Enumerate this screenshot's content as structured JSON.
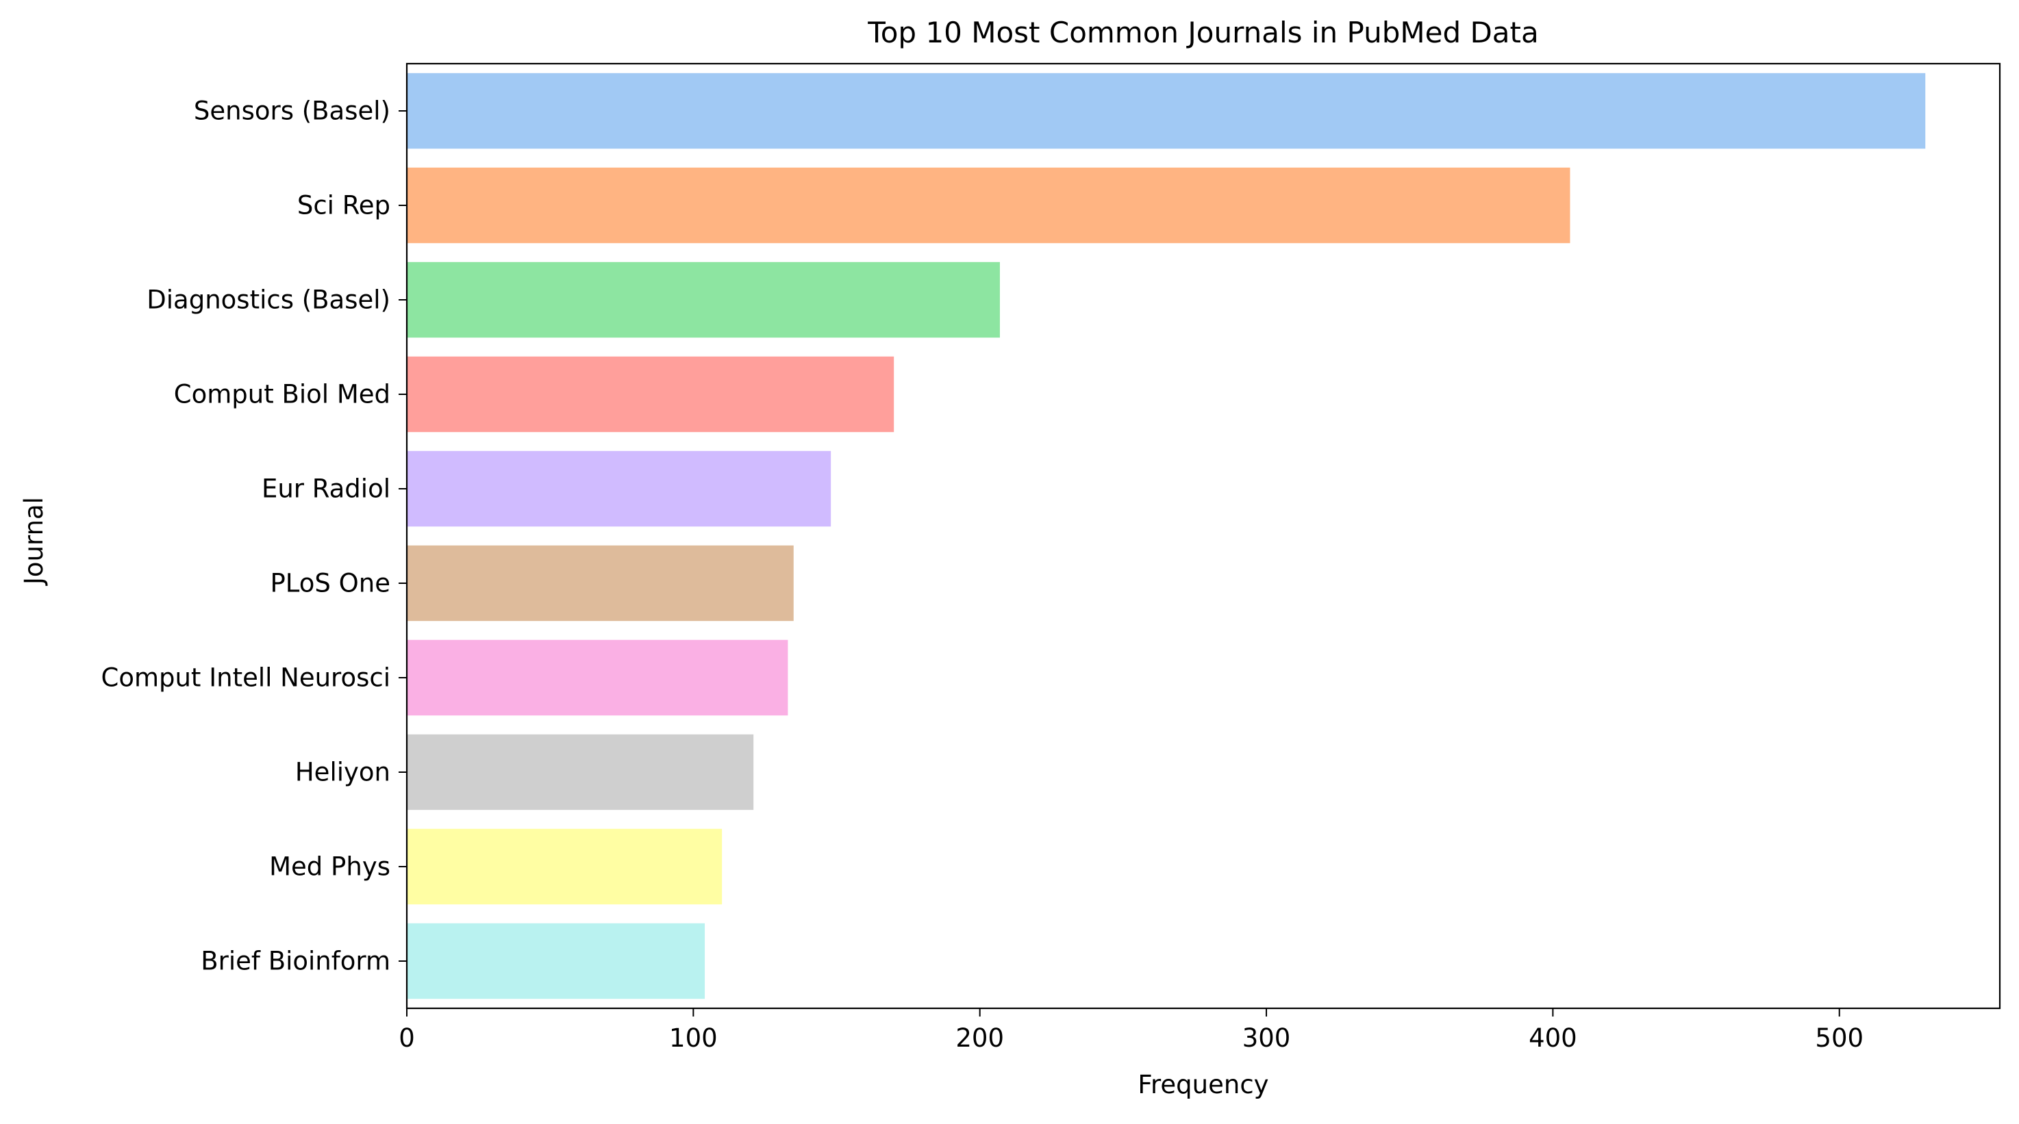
{
  "chart_data": {
    "type": "bar",
    "orientation": "horizontal",
    "title": "Top 10 Most Common Journals in PubMed Data",
    "xlabel": "Frequency",
    "ylabel": "Journal",
    "xlim": [
      0,
      556
    ],
    "xticks": [
      0,
      100,
      200,
      300,
      400,
      500
    ],
    "grid": false,
    "categories": [
      "Sensors (Basel)",
      "Sci Rep",
      "Diagnostics (Basel)",
      "Comput Biol Med",
      "Eur Radiol",
      "PLoS One",
      "Comput Intell Neurosci",
      "Heliyon",
      "Med Phys",
      "Brief Bioinform"
    ],
    "values": [
      530,
      406,
      207,
      170,
      148,
      135,
      133,
      121,
      110,
      104
    ],
    "colors": [
      "#a1c9f4",
      "#ffb482",
      "#8de5a1",
      "#ff9f9b",
      "#d0bbff",
      "#debb9b",
      "#fab0e4",
      "#cfcfcf",
      "#fffea3",
      "#b9f2f0"
    ]
  }
}
